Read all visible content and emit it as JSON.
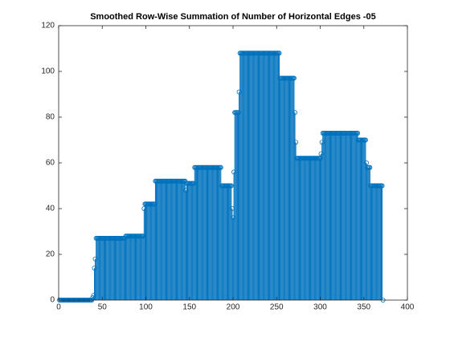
{
  "chart_data": {
    "type": "stem",
    "title": "Smoothed Row-Wise Summation of Number of Horizontal Edges -05",
    "color": "#0072bd",
    "xlim": [
      0,
      400
    ],
    "xticks": [
      0,
      50,
      100,
      150,
      200,
      250,
      300,
      350,
      400
    ],
    "ylim": [
      0,
      120
    ],
    "yticks": [
      0,
      20,
      40,
      60,
      80,
      100,
      120
    ],
    "x": [
      1,
      2,
      3,
      4,
      5,
      6,
      7,
      8,
      9,
      10,
      11,
      12,
      13,
      14,
      15,
      16,
      17,
      18,
      19,
      20,
      21,
      22,
      23,
      24,
      25,
      26,
      27,
      28,
      29,
      30,
      31,
      32,
      33,
      34,
      35,
      36,
      37,
      38,
      39,
      40,
      41,
      42,
      43,
      44,
      45,
      46,
      47,
      48,
      49,
      50,
      51,
      52,
      53,
      54,
      55,
      56,
      57,
      58,
      59,
      60,
      61,
      62,
      63,
      64,
      65,
      66,
      67,
      68,
      69,
      70,
      71,
      72,
      73,
      74,
      75,
      76,
      77,
      78,
      79,
      80,
      81,
      82,
      83,
      84,
      85,
      86,
      87,
      88,
      89,
      90,
      91,
      92,
      93,
      94,
      95,
      96,
      97,
      98,
      99,
      100,
      101,
      102,
      103,
      104,
      105,
      106,
      107,
      108,
      109,
      110,
      111,
      112,
      113,
      114,
      115,
      116,
      117,
      118,
      119,
      120,
      121,
      122,
      123,
      124,
      125,
      126,
      127,
      128,
      129,
      130,
      131,
      132,
      133,
      134,
      135,
      136,
      137,
      138,
      139,
      140,
      141,
      142,
      143,
      144,
      145,
      146,
      147,
      148,
      149,
      150,
      151,
      152,
      153,
      154,
      155,
      156,
      157,
      158,
      159,
      160,
      161,
      162,
      163,
      164,
      165,
      166,
      167,
      168,
      169,
      170,
      171,
      172,
      173,
      174,
      175,
      176,
      177,
      178,
      179,
      180,
      181,
      182,
      183,
      184,
      185,
      186,
      187,
      188,
      189,
      190,
      191,
      192,
      193,
      194,
      195,
      196,
      197,
      198,
      199,
      200,
      201,
      202,
      203,
      204,
      205,
      206,
      207,
      208,
      209,
      210,
      211,
      212,
      213,
      214,
      215,
      216,
      217,
      218,
      219,
      220,
      221,
      222,
      223,
      224,
      225,
      226,
      227,
      228,
      229,
      230,
      231,
      232,
      233,
      234,
      235,
      236,
      237,
      238,
      239,
      240,
      241,
      242,
      243,
      244,
      245,
      246,
      247,
      248,
      249,
      250,
      251,
      252,
      253,
      254,
      255,
      256,
      257,
      258,
      259,
      260,
      261,
      262,
      263,
      264,
      265,
      266,
      267,
      268,
      269,
      270,
      271,
      272,
      273,
      274,
      275,
      276,
      277,
      278,
      279,
      280,
      281,
      282,
      283,
      284,
      285,
      286,
      287,
      288,
      289,
      290,
      291,
      292,
      293,
      294,
      295,
      296,
      297,
      298,
      299,
      300,
      301,
      302,
      303,
      304,
      305,
      306,
      307,
      308,
      309,
      310,
      311,
      312,
      313,
      314,
      315,
      316,
      317,
      318,
      319,
      320,
      321,
      322,
      323,
      324,
      325,
      326,
      327,
      328,
      329,
      330,
      331,
      332,
      333,
      334,
      335,
      336,
      337,
      338,
      339,
      340,
      341,
      342,
      343,
      344,
      345,
      346,
      347,
      348,
      349,
      350,
      351,
      352,
      353,
      354,
      355,
      356,
      357,
      358,
      359,
      360,
      361,
      362,
      363,
      364,
      365,
      366,
      367,
      368,
      369,
      370,
      371,
      372
    ],
    "values": [
      0,
      0,
      0,
      0,
      0,
      0,
      0,
      0,
      0,
      0,
      0,
      0,
      0,
      0,
      0,
      0,
      0,
      0,
      0,
      0,
      0,
      0,
      0,
      0,
      0,
      0,
      0,
      0,
      0,
      0,
      0,
      0,
      0,
      0,
      0,
      0,
      0,
      0,
      1,
      2,
      14,
      18,
      27,
      27,
      27,
      27,
      27,
      27,
      27,
      27,
      27,
      27,
      27,
      27,
      27,
      27,
      27,
      27,
      27,
      27,
      27,
      27,
      27,
      27,
      27,
      27,
      27,
      27,
      27,
      27,
      27,
      27,
      27,
      27,
      27,
      27,
      28,
      28,
      28,
      28,
      28,
      28,
      28,
      28,
      28,
      28,
      28,
      28,
      28,
      28,
      28,
      28,
      28,
      28,
      28,
      28,
      28,
      40,
      42,
      42,
      42,
      42,
      42,
      42,
      42,
      42,
      42,
      42,
      42,
      42,
      52,
      52,
      52,
      52,
      52,
      52,
      52,
      52,
      52,
      52,
      52,
      52,
      52,
      52,
      52,
      52,
      52,
      52,
      52,
      52,
      52,
      52,
      52,
      52,
      52,
      52,
      52,
      52,
      52,
      52,
      52,
      52,
      52,
      52,
      52,
      48,
      51,
      51,
      51,
      51,
      51,
      51,
      51,
      51,
      51,
      58,
      58,
      58,
      58,
      58,
      58,
      58,
      58,
      58,
      58,
      58,
      58,
      58,
      58,
      58,
      58,
      58,
      58,
      58,
      58,
      58,
      58,
      58,
      58,
      58,
      58,
      58,
      58,
      58,
      58,
      58,
      50,
      50,
      50,
      50,
      50,
      50,
      50,
      50,
      50,
      50,
      50,
      50,
      40,
      36,
      56,
      82,
      82,
      82,
      82,
      82,
      91,
      108,
      108,
      108,
      108,
      108,
      108,
      108,
      108,
      108,
      108,
      108,
      108,
      108,
      108,
      108,
      108,
      108,
      108,
      108,
      108,
      108,
      108,
      108,
      108,
      108,
      108,
      108,
      108,
      108,
      108,
      108,
      108,
      108,
      108,
      108,
      108,
      108,
      108,
      108,
      108,
      108,
      108,
      108,
      108,
      108,
      108,
      97,
      97,
      97,
      97,
      97,
      97,
      97,
      97,
      97,
      97,
      97,
      97,
      97,
      97,
      97,
      97,
      97,
      82,
      69,
      62,
      62,
      62,
      62,
      62,
      62,
      62,
      62,
      62,
      62,
      62,
      62,
      62,
      62,
      62,
      62,
      62,
      62,
      62,
      62,
      62,
      62,
      62,
      62,
      62,
      62,
      62,
      62,
      64,
      69,
      73,
      73,
      73,
      73,
      73,
      73,
      73,
      73,
      73,
      73,
      73,
      73,
      73,
      73,
      73,
      73,
      73,
      73,
      73,
      73,
      73,
      73,
      73,
      73,
      73,
      73,
      73,
      73,
      73,
      73,
      73,
      73,
      73,
      73,
      73,
      73,
      73,
      73,
      73,
      73,
      73,
      70,
      70,
      70,
      70,
      70,
      70,
      70,
      70,
      70,
      60,
      58,
      58,
      58,
      58,
      50,
      50,
      50,
      50,
      50,
      50,
      50,
      50,
      50,
      50,
      50,
      50,
      50,
      50,
      0
    ]
  }
}
